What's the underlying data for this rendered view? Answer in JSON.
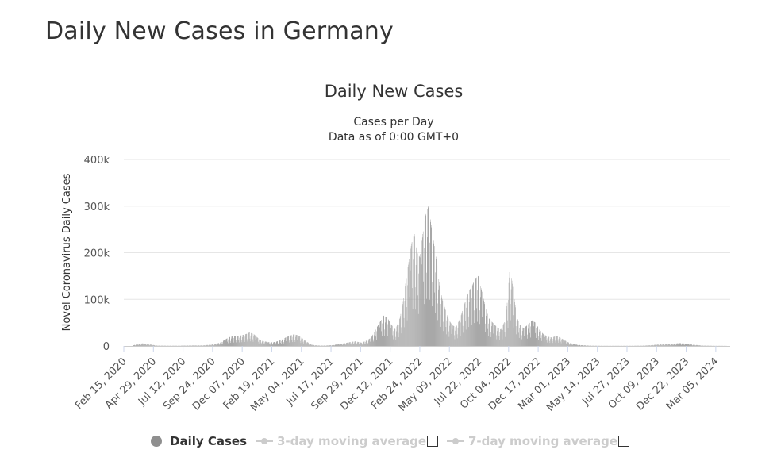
{
  "page": {
    "title": "Daily New Cases in Germany"
  },
  "chart_data": {
    "type": "bar",
    "title": "Daily New Cases",
    "subtitle_lines": [
      "Cases per Day",
      "Data as of 0:00 GMT+0"
    ],
    "ylabel": "Novel Coronavirus Daily Cases",
    "xlabel": "",
    "ylim": [
      0,
      400000
    ],
    "yticks": [
      {
        "value": 0,
        "label": "0"
      },
      {
        "value": 100000,
        "label": "100k"
      },
      {
        "value": 200000,
        "label": "200k"
      },
      {
        "value": 300000,
        "label": "300k"
      },
      {
        "value": 400000,
        "label": "400k"
      }
    ],
    "xlim": [
      "2020-02-15",
      "2024-04-10"
    ],
    "xticks": [
      "Feb 15, 2020",
      "Apr 29, 2020",
      "Jul 12, 2020",
      "Sep 24, 2020",
      "Dec 07, 2020",
      "Feb 19, 2021",
      "May 04, 2021",
      "Jul 17, 2021",
      "Sep 29, 2021",
      "Dec 12, 2021",
      "Feb 24, 2022",
      "May 09, 2022",
      "Jul 22, 2022",
      "Oct 04, 2022",
      "Dec 17, 2022",
      "Mar 01, 2023",
      "May 14, 2023",
      "Jul 27, 2023",
      "Oct 09, 2023",
      "Dec 22, 2023",
      "Mar 05, 2024"
    ],
    "grid": true,
    "bar_color": "#9a9a9a",
    "series": [
      {
        "name": "Daily Cases",
        "x": [
          "2020-03-10",
          "2020-03-20",
          "2020-04-01",
          "2020-04-12",
          "2020-04-25",
          "2020-05-08",
          "2020-06-01",
          "2020-07-01",
          "2020-08-01",
          "2020-09-01",
          "2020-10-01",
          "2020-10-15",
          "2020-10-25",
          "2020-11-05",
          "2020-11-20",
          "2020-12-01",
          "2020-12-10",
          "2020-12-18",
          "2020-12-25",
          "2021-01-05",
          "2021-01-15",
          "2021-01-25",
          "2021-02-05",
          "2021-02-15",
          "2021-03-01",
          "2021-03-15",
          "2021-03-25",
          "2021-04-05",
          "2021-04-15",
          "2021-04-25",
          "2021-05-05",
          "2021-05-15",
          "2021-05-25",
          "2021-06-05",
          "2021-06-20",
          "2021-07-05",
          "2021-07-20",
          "2021-08-05",
          "2021-08-20",
          "2021-09-01",
          "2021-09-15",
          "2021-10-01",
          "2021-10-15",
          "2021-10-25",
          "2021-11-05",
          "2021-11-15",
          "2021-11-25",
          "2021-12-05",
          "2021-12-15",
          "2021-12-25",
          "2022-01-05",
          "2022-01-12",
          "2022-01-20",
          "2022-01-27",
          "2022-02-03",
          "2022-02-10",
          "2022-02-17",
          "2022-02-24",
          "2022-03-03",
          "2022-03-10",
          "2022-03-17",
          "2022-03-24",
          "2022-03-31",
          "2022-04-07",
          "2022-04-14",
          "2022-04-21",
          "2022-04-28",
          "2022-05-05",
          "2022-05-15",
          "2022-05-25",
          "2022-06-05",
          "2022-06-15",
          "2022-06-25",
          "2022-07-05",
          "2022-07-12",
          "2022-07-20",
          "2022-07-28",
          "2022-08-05",
          "2022-08-15",
          "2022-08-25",
          "2022-09-05",
          "2022-09-15",
          "2022-09-25",
          "2022-10-01",
          "2022-10-07",
          "2022-10-12",
          "2022-10-18",
          "2022-10-25",
          "2022-11-01",
          "2022-11-10",
          "2022-11-20",
          "2022-12-01",
          "2022-12-10",
          "2022-12-20",
          "2022-12-30",
          "2023-01-10",
          "2023-01-20",
          "2023-02-01",
          "2023-02-15",
          "2023-03-01",
          "2023-03-15",
          "2023-03-25",
          "2023-04-05",
          "2023-04-15",
          "2023-05-01",
          "2023-06-01",
          "2023-07-01",
          "2023-08-01",
          "2023-09-01",
          "2023-09-20",
          "2023-10-05",
          "2023-10-20",
          "2023-11-05",
          "2023-11-20",
          "2023-12-05",
          "2023-12-15",
          "2023-12-25",
          "2024-01-10",
          "2024-02-01",
          "2024-03-01",
          "2024-04-01"
        ],
        "values": [
          1500,
          4000,
          5500,
          4500,
          2500,
          800,
          500,
          400,
          1000,
          1200,
          4000,
          8000,
          14000,
          19000,
          22000,
          22000,
          24000,
          26000,
          29000,
          25000,
          17000,
          11000,
          9000,
          7500,
          9000,
          13000,
          18000,
          22000,
          25000,
          23000,
          17000,
          10000,
          5000,
          1500,
          700,
          800,
          1500,
          4000,
          6000,
          8000,
          10000,
          7000,
          12000,
          18000,
          35000,
          50000,
          65000,
          60000,
          45000,
          35000,
          60000,
          90000,
          140000,
          180000,
          220000,
          240000,
          200000,
          190000,
          240000,
          280000,
          300000,
          260000,
          220000,
          180000,
          130000,
          100000,
          80000,
          60000,
          45000,
          40000,
          60000,
          90000,
          115000,
          130000,
          145000,
          150000,
          120000,
          90000,
          60000,
          50000,
          40000,
          35000,
          55000,
          100000,
          170000,
          140000,
          100000,
          60000,
          45000,
          38000,
          45000,
          55000,
          50000,
          35000,
          25000,
          20000,
          18000,
          22000,
          15000,
          8000,
          4000,
          2500,
          1500,
          1000,
          500,
          300,
          300,
          300,
          500,
          1200,
          2500,
          3500,
          4000,
          5000,
          6000,
          5500,
          4000,
          2500,
          800,
          300,
          200
        ]
      }
    ],
    "legend": [
      {
        "label": "Daily Cases",
        "active": true,
        "color": "#8f8f8f"
      },
      {
        "label": "3-day moving average",
        "active": false,
        "color": "#cccccc"
      },
      {
        "label": "7-day moving average",
        "active": false,
        "color": "#cccccc"
      }
    ]
  }
}
